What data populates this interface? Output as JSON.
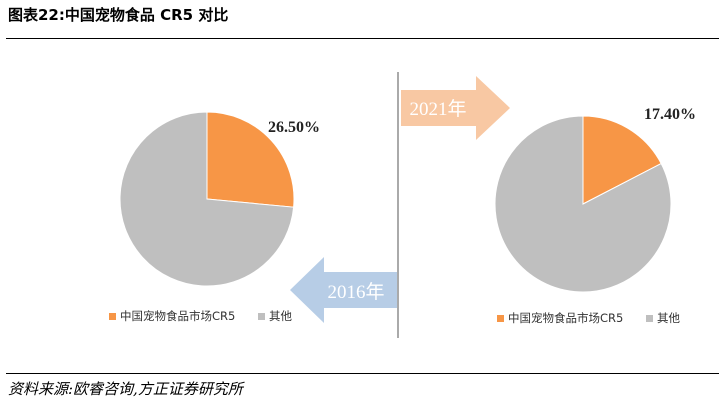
{
  "header": {
    "title": "图表22:中国宠物食品 CR5 对比"
  },
  "footer": {
    "source": "资料来源:欧睿咨询,方正证券研究所"
  },
  "arrows": {
    "forward_label": "2021年",
    "backward_label": "2016年"
  },
  "colors": {
    "orange": "#F79646",
    "gray": "#BFBFBF",
    "arrow_forward": "#F8C8A3",
    "arrow_backward": "#B7CDE6"
  },
  "chart_data": [
    {
      "type": "pie",
      "slices": [
        {
          "name": "中国宠物食品市场CR5",
          "value": 26.5
        },
        {
          "name": "其他",
          "value": 73.5
        }
      ],
      "data_label": "26.50%",
      "legend": [
        "中国宠物食品市场CR5",
        "其他"
      ]
    },
    {
      "type": "pie",
      "slices": [
        {
          "name": "中国宠物食品市场CR5",
          "value": 17.4
        },
        {
          "name": "其他",
          "value": 82.6
        }
      ],
      "data_label": "17.40%",
      "legend": [
        "中国宠物食品市场CR5",
        "其他"
      ]
    }
  ]
}
